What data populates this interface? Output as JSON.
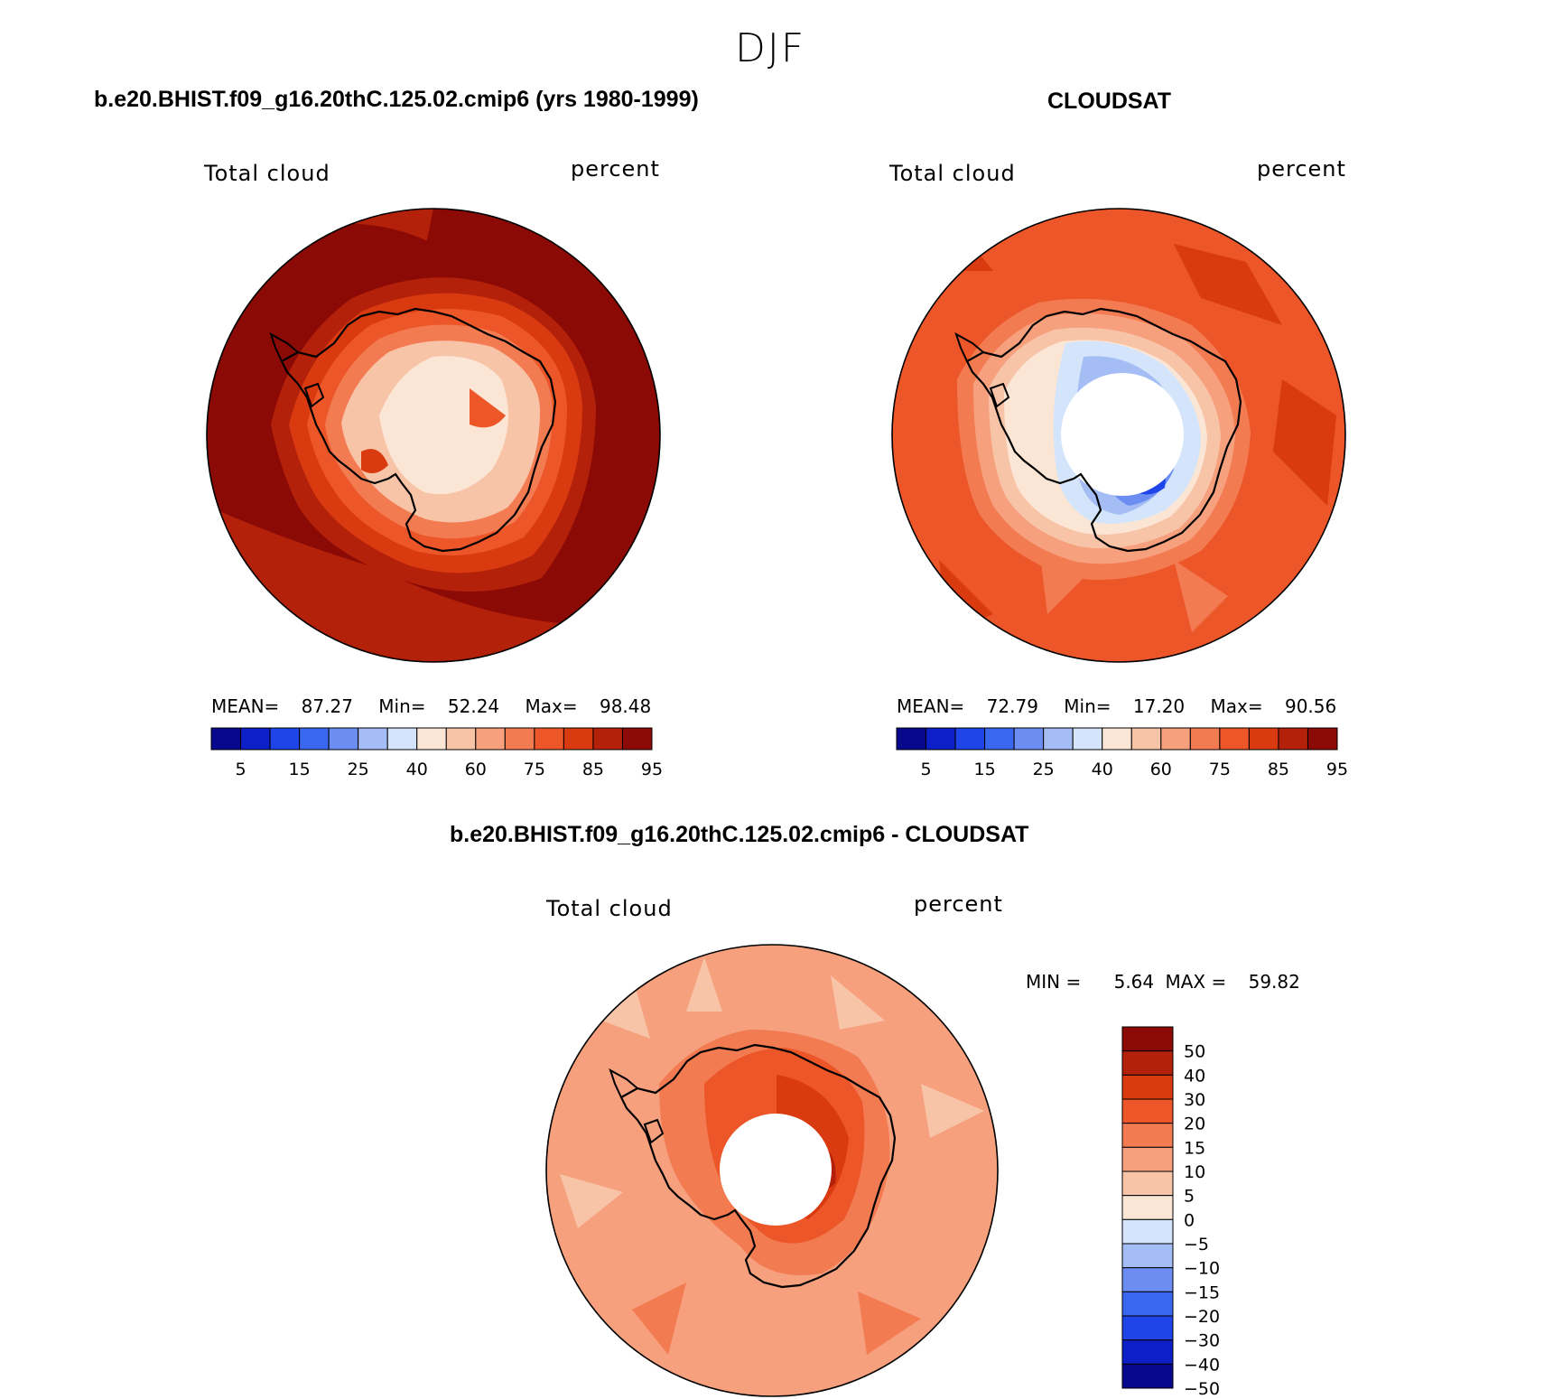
{
  "figure": {
    "season": "DJF",
    "diff_title": "b.e20.BHIST.f09_g16.20thC.125.02.cmip6 - CLOUDSAT"
  },
  "panels": [
    {
      "title": "b.e20.BHIST.f09_g16.20thC.125.02.cmip6 (yrs 1980-1999)",
      "left_label": "Total cloud",
      "right_label": "percent",
      "stats": {
        "mean_label": "MEAN=",
        "mean": "87.27",
        "min_label": "Min=",
        "min": "52.24",
        "max_label": "Max=",
        "max": "98.48"
      }
    },
    {
      "title": "CLOUDSAT",
      "left_label": "Total cloud",
      "right_label": "percent",
      "stats": {
        "mean_label": "MEAN=",
        "mean": "72.79",
        "min_label": "Min=",
        "min": "17.20",
        "max_label": "Max=",
        "max": "90.56"
      }
    },
    {
      "left_label": "Total cloud",
      "right_label": "percent",
      "stats": {
        "min_label": "MIN =",
        "min": "5.64",
        "max_label": "MAX =",
        "max": "59.82"
      }
    }
  ],
  "colorbar_abs": {
    "colors": [
      "#08088c",
      "#0d1fc6",
      "#1f44e8",
      "#3a67f0",
      "#6c8ef3",
      "#a5bdf5",
      "#d4e5fb",
      "#fbe6d5",
      "#f8c4a8",
      "#f6a07e",
      "#f37b52",
      "#ec5628",
      "#d93a0f",
      "#b3210a",
      "#8b0a05"
    ],
    "tick_labels": [
      "5",
      "15",
      "25",
      "40",
      "60",
      "75",
      "85",
      "95"
    ]
  },
  "colorbar_diff": {
    "colors": [
      "#08088c",
      "#0d1fc6",
      "#1f44e8",
      "#3a67f0",
      "#6c8ef3",
      "#a5bdf5",
      "#d4e5fb",
      "#fbe6d5",
      "#f8c4a8",
      "#f6a07e",
      "#f37b52",
      "#ec5628",
      "#d93a0f",
      "#b3210a",
      "#8b0a05"
    ],
    "tick_labels": [
      "50",
      "40",
      "30",
      "20",
      "15",
      "10",
      "5",
      "0",
      "−5",
      "−10",
      "−15",
      "−20",
      "−30",
      "−40",
      "−50"
    ]
  },
  "chart_data": [
    {
      "type": "heatmap",
      "projection": "south polar stereographic",
      "field": "Total cloud",
      "units": "percent",
      "mean": 87.27,
      "min": 52.24,
      "max": 98.48,
      "levels": [
        5,
        10,
        15,
        20,
        25,
        30,
        40,
        50,
        60,
        70,
        75,
        80,
        85,
        90,
        95
      ]
    },
    {
      "type": "heatmap",
      "projection": "south polar stereographic",
      "field": "Total cloud",
      "units": "percent",
      "mean": 72.79,
      "min": 17.2,
      "max": 90.56,
      "levels": [
        5,
        10,
        15,
        20,
        25,
        30,
        40,
        50,
        60,
        70,
        75,
        80,
        85,
        90,
        95
      ]
    },
    {
      "type": "heatmap",
      "projection": "south polar stereographic",
      "field": "Total cloud",
      "units": "percent",
      "min": 5.64,
      "max": 59.82,
      "levels": [
        -50,
        -40,
        -30,
        -20,
        -15,
        -10,
        -5,
        0,
        5,
        10,
        15,
        20,
        30,
        40,
        50
      ]
    }
  ]
}
